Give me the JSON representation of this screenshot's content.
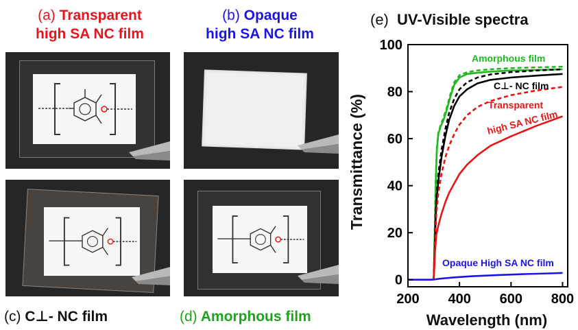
{
  "panels": {
    "a": {
      "letter": "(a)",
      "line1": "Transparent",
      "line2": "high SA NC film",
      "color": "#e8141b"
    },
    "b": {
      "letter": "(b)",
      "line1": "Opaque",
      "line2": "high SA NC film",
      "color": "#1b14e8"
    },
    "c": {
      "letter": "(c)",
      "label": "C⊥- NC film",
      "color": "#111111"
    },
    "d": {
      "letter": "(d)",
      "label": "Amorphous film",
      "color": "#1fa31f"
    }
  },
  "chart_data": {
    "type": "line",
    "panel_letter": "(e)",
    "title": "UV-Visible spectra",
    "xlabel": "Wavelength (nm)",
    "ylabel": "Transmittance (%)",
    "xlim": [
      200,
      820
    ],
    "ylim": [
      -3,
      100
    ],
    "xticks": [
      "200",
      "400",
      "600",
      "800"
    ],
    "yticks": [
      "0",
      "20",
      "40",
      "60",
      "80",
      "100"
    ],
    "series": [
      {
        "name": "Amorphous film",
        "color": "#1fb81f",
        "dash": false,
        "x": [
          300,
          304,
          308,
          312,
          318,
          326,
          338,
          350,
          365,
          380,
          400,
          430,
          470,
          520,
          600,
          700,
          800
        ],
        "y": [
          0,
          20,
          42,
          55,
          62,
          65,
          68,
          72,
          78,
          83,
          86,
          87.5,
          88,
          88.5,
          89,
          89.2,
          89.5
        ]
      },
      {
        "name": "",
        "color": "#1fb81f",
        "dash": true,
        "x": [
          300,
          304,
          308,
          312,
          318,
          326,
          338,
          350,
          365,
          380,
          400,
          430,
          470,
          520,
          600,
          700,
          800
        ],
        "y": [
          0,
          22,
          44,
          56,
          62.5,
          65.5,
          69,
          73,
          79,
          84,
          87,
          88.3,
          89,
          89.5,
          90,
          90.3,
          90.6
        ]
      },
      {
        "name": "C⊥- NC film",
        "color": "#000000",
        "dash": false,
        "x": [
          300,
          305,
          310,
          318,
          330,
          345,
          360,
          380,
          400,
          430,
          470,
          520,
          600,
          700,
          800
        ],
        "y": [
          0,
          18,
          32,
          42,
          52,
          61,
          68,
          74,
          78,
          81,
          83.5,
          85,
          86,
          86.8,
          87.5
        ]
      },
      {
        "name": "",
        "color": "#000000",
        "dash": true,
        "x": [
          300,
          305,
          310,
          318,
          330,
          345,
          360,
          380,
          400,
          430,
          470,
          520,
          600,
          700,
          800
        ],
        "y": [
          0,
          20,
          34,
          45,
          55,
          64,
          71,
          77,
          81,
          84,
          86,
          87.3,
          88.3,
          89,
          89.5
        ]
      },
      {
        "name": "Transparent high SA NC film",
        "color": "#e81414",
        "dash": true,
        "x": [
          300,
          305,
          310,
          318,
          330,
          345,
          360,
          380,
          400,
          430,
          470,
          520,
          600,
          700,
          800
        ],
        "y": [
          0,
          16,
          28,
          37,
          45,
          52,
          57,
          62,
          66,
          70,
          73.5,
          76,
          78.5,
          80.5,
          82
        ]
      },
      {
        "name": "",
        "color": "#e81414",
        "dash": false,
        "x": [
          300,
          305,
          310,
          318,
          330,
          345,
          360,
          380,
          400,
          430,
          470,
          520,
          600,
          700,
          800
        ],
        "y": [
          0,
          12,
          19,
          23,
          28,
          33,
          37,
          41,
          45,
          49,
          53,
          57,
          61,
          65.5,
          69.5
        ]
      },
      {
        "name": "Opaque High SA NC film",
        "color": "#1b14e8",
        "dash": false,
        "x": [
          200,
          250,
          290,
          300,
          330,
          380,
          450,
          550,
          650,
          750,
          800
        ],
        "y": [
          0,
          0,
          0,
          0.1,
          0.5,
          1.0,
          1.5,
          2.0,
          2.4,
          2.7,
          2.9
        ]
      }
    ],
    "annotations": [
      {
        "text": "Amorphous film",
        "color": "#1fb81f"
      },
      {
        "text": "C⊥- NC film",
        "color": "#000000"
      },
      {
        "text": "Transparent",
        "color": "#e81414"
      },
      {
        "text": "high SA NC film",
        "color": "#e81414"
      },
      {
        "text": "Opaque High SA NC film",
        "color": "#1b14e8"
      }
    ]
  }
}
